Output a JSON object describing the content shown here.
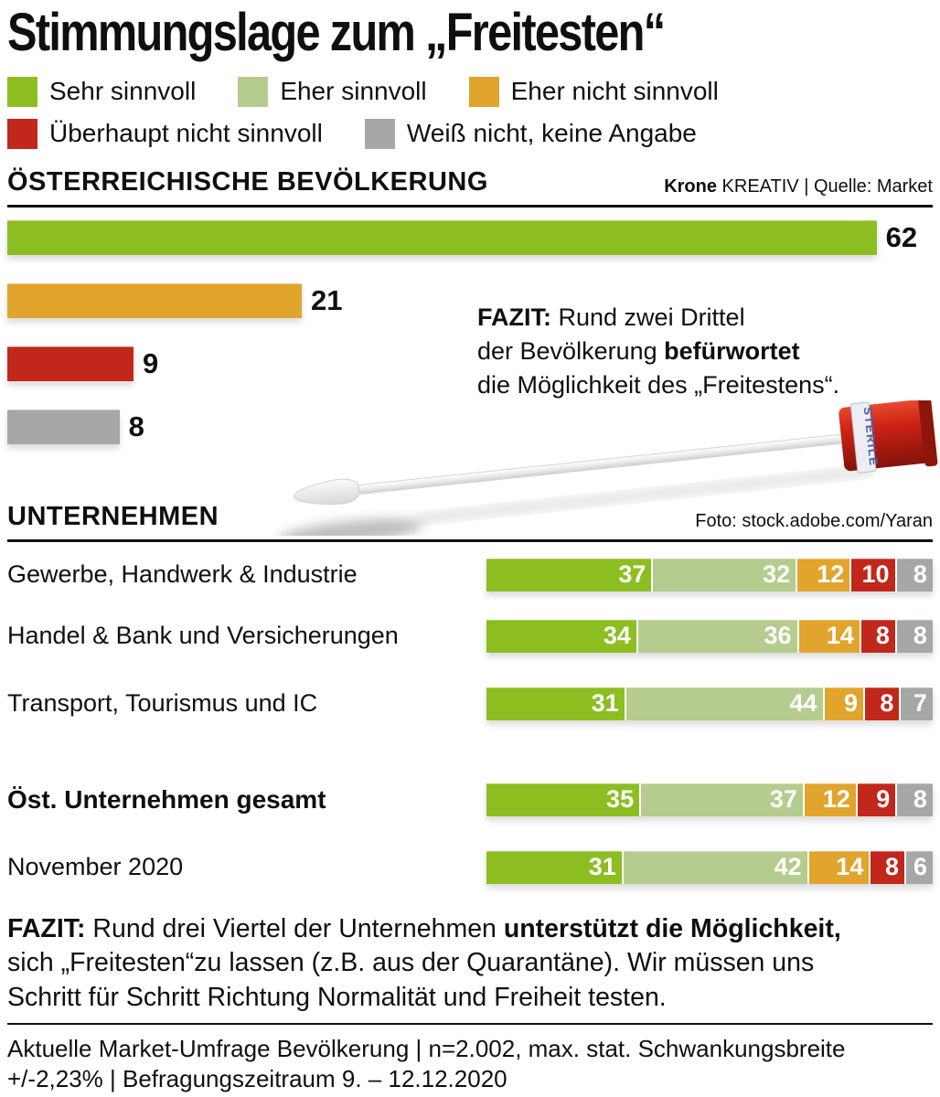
{
  "title": "Stimmungslage zum „Freitesten“",
  "colors": {
    "sehr_sinnvoll": "#8cbe22",
    "eher_sinnvoll": "#b5cc8e",
    "eher_nicht_sinnvoll": "#e1a52d",
    "ueberhaupt_nicht_sinnvoll": "#c1271b",
    "weiss_nicht": "#a6a7a7"
  },
  "legend_rows": [
    [
      {
        "label": "Sehr sinnvoll",
        "color_key": "sehr_sinnvoll"
      },
      {
        "label": "Eher sinnvoll",
        "color_key": "eher_sinnvoll"
      },
      {
        "label": "Eher nicht sinnvoll",
        "color_key": "eher_nicht_sinnvoll"
      }
    ],
    [
      {
        "label": "Überhaupt nicht sinnvoll",
        "color_key": "ueberhaupt_nicht_sinnvoll"
      },
      {
        "label": "Weiß nicht, keine Angabe",
        "color_key": "weiss_nicht"
      }
    ]
  ],
  "population_section": {
    "heading": "ÖSTERREICHISCHE BEVÖLKERUNG",
    "credit_bold": "Krone",
    "credit_rest": " KREATIV | Quelle: Market"
  },
  "fazit1": {
    "prefix_bold": "FAZIT:",
    "line1_rest": " Rund zwei Drittel",
    "line2_pre": "der Bevölkerung ",
    "line2_bold": "befürwortet",
    "line3": "die Möglichkeit des „Freitestens“."
  },
  "swab": {
    "label": "STERILE"
  },
  "companies_section": {
    "heading": "UNTERNEHMEN",
    "photo_credit": "Foto: stock.adobe.com/Yaran"
  },
  "fazit2": {
    "seg1_bold": "FAZIT:",
    "seg2": " Rund drei Viertel der Unternehmen ",
    "seg3_bold": "unterstützt die Möglichkeit,",
    "seg4": "\nsich „Freitesten“zu lassen (z.B. aus der Quarantäne). Wir müssen uns\nSchritt für Schritt Richtung Normalität und Freiheit testen."
  },
  "footer": {
    "note": "Aktuelle Market-Umfrage Bevölkerung | n=2.002, max. stat. Schwankungsbreite\n+/-2,23% | Befragungszeitraum 9. – 12.12.2020"
  },
  "chart_data": [
    {
      "id": "population",
      "type": "bar",
      "orientation": "horizontal",
      "title": "ÖSTERREICHISCHE BEVÖLKERUNG",
      "unit": "percent",
      "xlim": [
        0,
        100
      ],
      "bars": [
        {
          "label": "Sehr sinnvoll",
          "value": 62,
          "color_key": "sehr_sinnvoll"
        },
        {
          "label": "Eher nicht sinnvoll",
          "value": 21,
          "color_key": "eher_nicht_sinnvoll"
        },
        {
          "label": "Überhaupt nicht sinnvoll",
          "value": 9,
          "color_key": "ueberhaupt_nicht_sinnvoll"
        },
        {
          "label": "Weiß nicht, keine Angabe",
          "value": 8,
          "color_key": "weiss_nicht"
        }
      ]
    },
    {
      "id": "unternehmen",
      "type": "bar",
      "subtype": "stacked-horizontal",
      "title": "UNTERNEHMEN",
      "unit": "percent",
      "series_labels": [
        "Sehr sinnvoll",
        "Eher sinnvoll",
        "Eher nicht sinnvoll",
        "Überhaupt nicht sinnvoll",
        "Weiß nicht, keine Angabe"
      ],
      "color_keys": [
        "sehr_sinnvoll",
        "eher_sinnvoll",
        "eher_nicht_sinnvoll",
        "ueberhaupt_nicht_sinnvoll",
        "weiss_nicht"
      ],
      "rows": [
        {
          "label": "Gewerbe, Handwerk & Industrie",
          "bold": false,
          "values": [
            37,
            32,
            12,
            10,
            8
          ]
        },
        {
          "label": "Handel & Bank und Versicherungen",
          "bold": false,
          "values": [
            34,
            36,
            14,
            8,
            8
          ],
          "gap": "mid"
        },
        {
          "label": "Transport, Tourismus und IC",
          "bold": false,
          "values": [
            31,
            44,
            9,
            8,
            7
          ],
          "gap": "after"
        },
        {
          "label": "Öst. Unternehmen gesamt",
          "bold": true,
          "values": [
            35,
            37,
            12,
            9,
            8
          ],
          "gap": "mid2"
        },
        {
          "label": "November 2020",
          "bold": false,
          "values": [
            31,
            42,
            14,
            8,
            6
          ]
        }
      ]
    }
  ]
}
